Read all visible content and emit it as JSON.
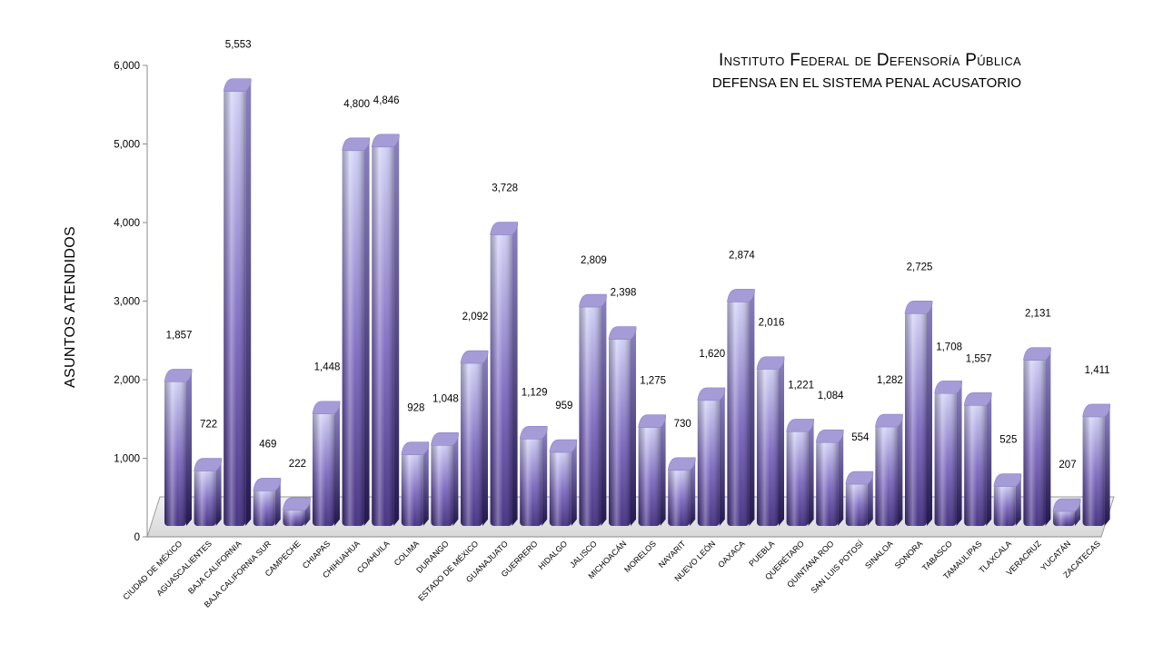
{
  "title_line1": "Instituto Federal de Defensoría Pública",
  "title_line2": "DEFENSA EN EL SISTEMA PENAL ACUSATORIO",
  "chart_data": {
    "type": "bar",
    "title": "Instituto Federal de Defensoría Pública",
    "subtitle": "DEFENSA EN EL SISTEMA PENAL ACUSATORIO",
    "xlabel": "",
    "ylabel": "ASUNTOS ATENDIDOS",
    "ylim": [
      0,
      6000
    ],
    "yticks": [
      0,
      1000,
      2000,
      3000,
      4000,
      5000,
      6000
    ],
    "ytick_labels": [
      "0",
      "1,000",
      "2,000",
      "3,000",
      "4,000",
      "5,000",
      "6,000"
    ],
    "grid": false,
    "legend": "none",
    "categories": [
      "CIUDAD DE MÉXICO",
      "AGUASCALIENTES",
      "BAJA CALIFORNIA",
      "BAJA CALIFORNIA SUR",
      "CAMPECHE",
      "CHIAPAS",
      "CHIHUAHUA",
      "COAHUILA",
      "COLIMA",
      "DURANGO",
      "ESTADO DE MÉXICO",
      "GUANAJUATO",
      "GUERRERO",
      "HIDALGO",
      "JALISCO",
      "MICHOACÁN",
      "MORELOS",
      "NAYARIT",
      "NUEVO LEÓN",
      "OAXACA",
      "PUEBLA",
      "QUERÉTARO",
      "QUINTANA ROO",
      "SAN LUIS POTOSÍ",
      "SINALOA",
      "SONORA",
      "TABASCO",
      "TAMAULIPAS",
      "TLAXCALA",
      "VERACRUZ",
      "YUCATÁN",
      "ZACATECAS"
    ],
    "values": [
      1857,
      722,
      5553,
      469,
      222,
      1448,
      4800,
      4846,
      928,
      1048,
      2092,
      3728,
      1129,
      959,
      2809,
      2398,
      1275,
      730,
      1620,
      2874,
      2016,
      1221,
      1084,
      554,
      1282,
      2725,
      1708,
      1557,
      525,
      2131,
      207,
      1411
    ],
    "data_labels": [
      "1,857",
      "722",
      "5,553",
      "469",
      "222",
      "1,448",
      "4,800",
      "4,846",
      "928",
      "1,048",
      "2,092",
      "3,728",
      "1,129",
      "959",
      "2,809",
      "2,398",
      "1,275",
      "730",
      "1,620",
      "2,874",
      "2,016",
      "1,221",
      "1,084",
      "554",
      "1,282",
      "2,725",
      "1,708",
      "1,557",
      "525",
      "2,131",
      "207",
      "1,411"
    ],
    "colors": {
      "bar_dark": "#3e2a7e",
      "bar_light": "#ccccf5",
      "bar_top": "#a59bd6",
      "floor": "#e4e4e4",
      "axis": "#8a8a8a"
    }
  }
}
